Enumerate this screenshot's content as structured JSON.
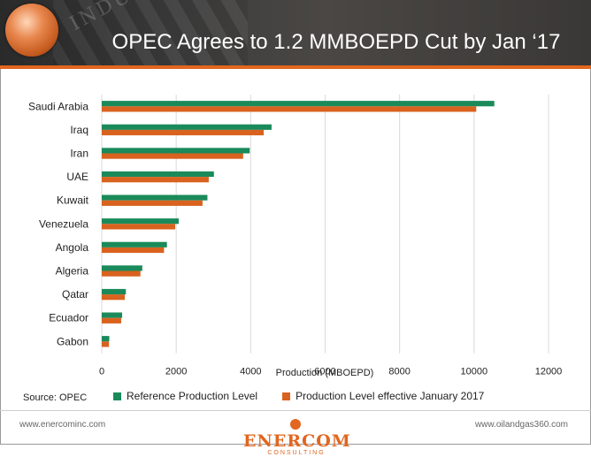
{
  "header": {
    "title": "OPEC Agrees to 1.2 MMBOEPD Cut by Jan ‘17",
    "watermark": "INDUSTRY"
  },
  "chart_data": {
    "type": "bar",
    "orientation": "horizontal",
    "categories": [
      "Saudi Arabia",
      "Iraq",
      "Iran",
      "UAE",
      "Kuwait",
      "Venezuela",
      "Angola",
      "Algeria",
      "Qatar",
      "Ecuador",
      "Gabon"
    ],
    "series": [
      {
        "name": "Reference Production Level",
        "color": "#1b8a5a",
        "values": [
          10544,
          4561,
          3975,
          3013,
          2838,
          2067,
          1751,
          1089,
          648,
          548,
          202
        ]
      },
      {
        "name": "Production Level effective January 2017",
        "color": "#d9621f",
        "values": [
          10058,
          4351,
          3797,
          2874,
          2707,
          1972,
          1673,
          1039,
          618,
          522,
          193
        ]
      }
    ],
    "xlabel": "Production (MBOEPD)",
    "xlim": [
      0,
      12000
    ],
    "xticks": [
      0,
      2000,
      4000,
      6000,
      8000,
      10000,
      12000
    ],
    "grid": true,
    "legend_position": "bottom"
  },
  "source": "Source: OPEC",
  "footer": {
    "left_url": "www.enercominc.com",
    "right_url": "www.oilandgas360.com",
    "brand": "ENERCOM",
    "brand_sub": "CONSULTING"
  }
}
